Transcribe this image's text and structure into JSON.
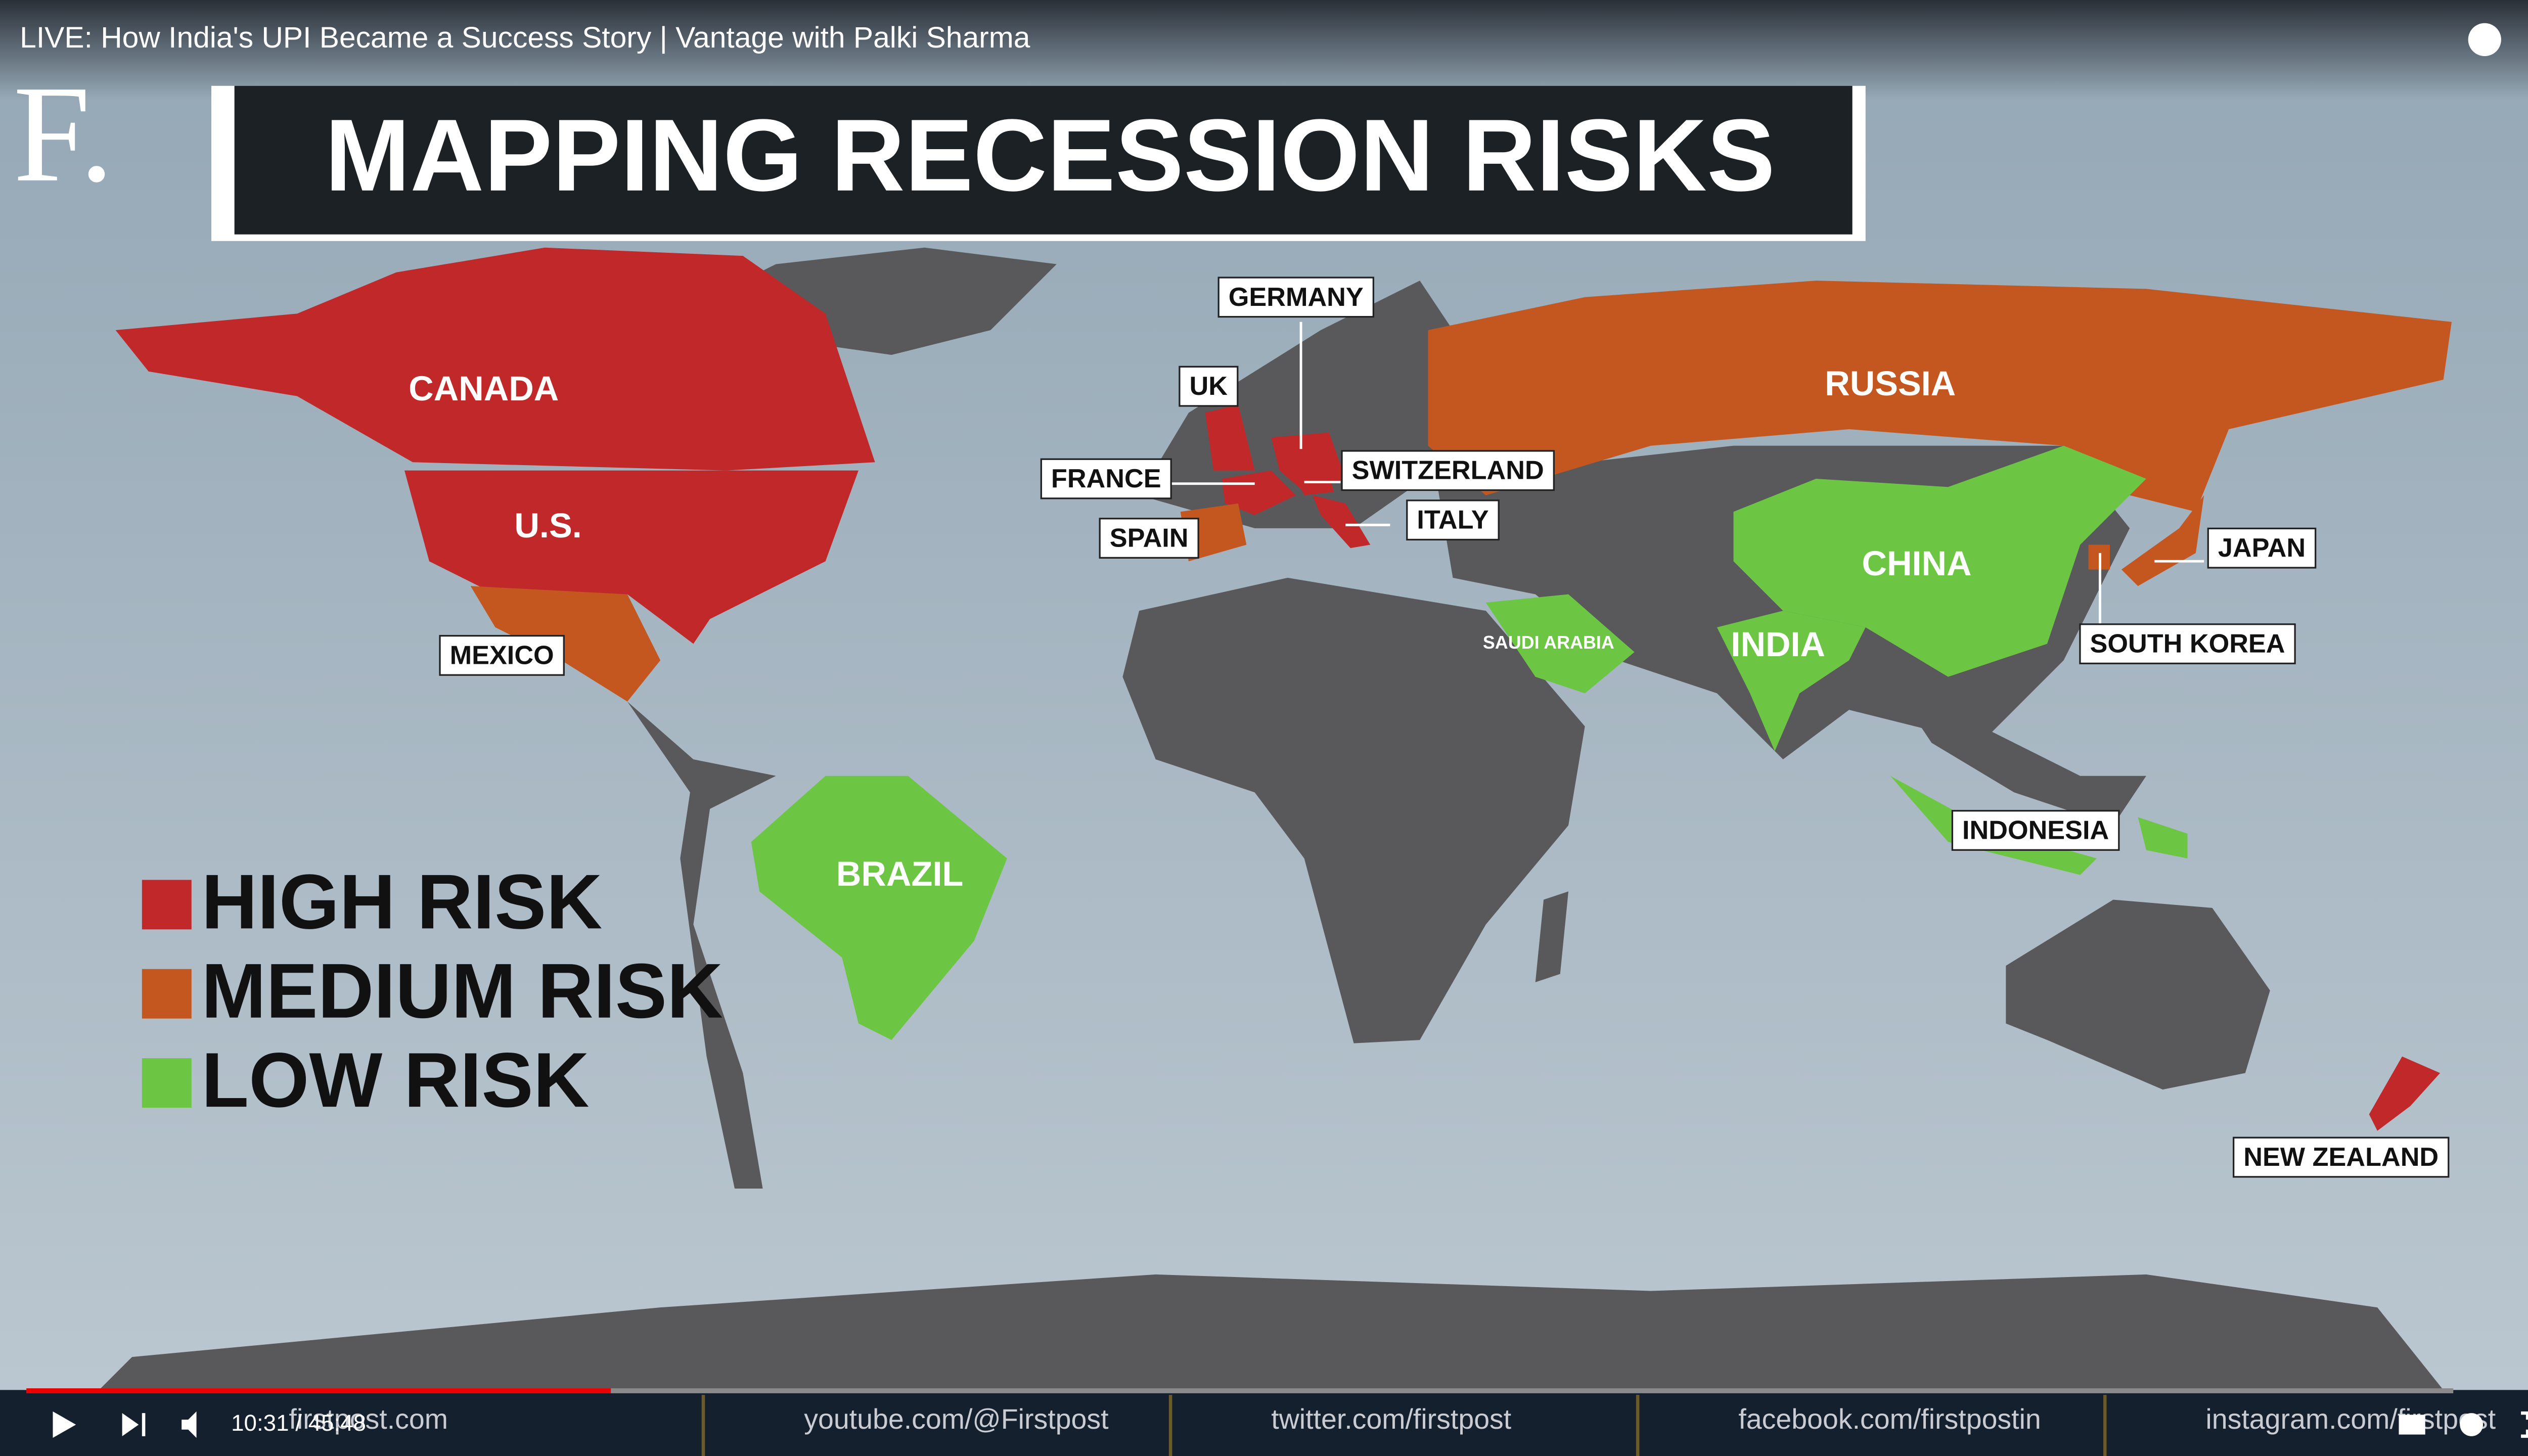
{
  "player": {
    "video_title": "LIVE: How India's UPI Became a Success Story | Vantage with Palki Sharma",
    "time": "10:31 / 45:48"
  },
  "logo": "F.",
  "map": {
    "title": "MAPPING RECESSION RISKS",
    "legend": [
      {
        "name": "HIGH RISK",
        "color": "#c0282a"
      },
      {
        "name": "MEDIUM RISK",
        "color": "#c4561f"
      },
      {
        "name": "LOW RISK",
        "color": "#6cc644"
      }
    ],
    "countries": [
      {
        "name": "CANADA",
        "color": "#c0282a"
      },
      {
        "name": "U.S.",
        "color": "#c0282a"
      },
      {
        "name": "MEXICO",
        "color": "#c4561f"
      },
      {
        "name": "BRAZIL",
        "color": "#6cc644"
      },
      {
        "name": "UK",
        "color": "#c0282a"
      },
      {
        "name": "GERMANY",
        "color": "#c0282a"
      },
      {
        "name": "FRANCE",
        "color": "#c0282a"
      },
      {
        "name": "SWITZERLAND",
        "color": "#c0282a"
      },
      {
        "name": "ITALY",
        "color": "#c0282a"
      },
      {
        "name": "SPAIN",
        "color": "#c4561f"
      },
      {
        "name": "RUSSIA",
        "color": "#c4561f"
      },
      {
        "name": "CHINA",
        "color": "#6cc644"
      },
      {
        "name": "INDIA",
        "color": "#6cc644"
      },
      {
        "name": "SAUDI ARABIA",
        "color": "#6cc644"
      },
      {
        "name": "JAPAN",
        "color": "#c4561f"
      },
      {
        "name": "SOUTH KOREA",
        "color": "#c4561f"
      },
      {
        "name": "INDONESIA",
        "color": "#6cc644"
      },
      {
        "name": "NEW ZEALAND",
        "color": "#c0282a"
      }
    ]
  },
  "footer": [
    "firstpost.com",
    "youtube.com/@Firstpost",
    "twitter.com/firstpost",
    "facebook.com/firstpostin",
    "instagram.com/firstpost"
  ]
}
